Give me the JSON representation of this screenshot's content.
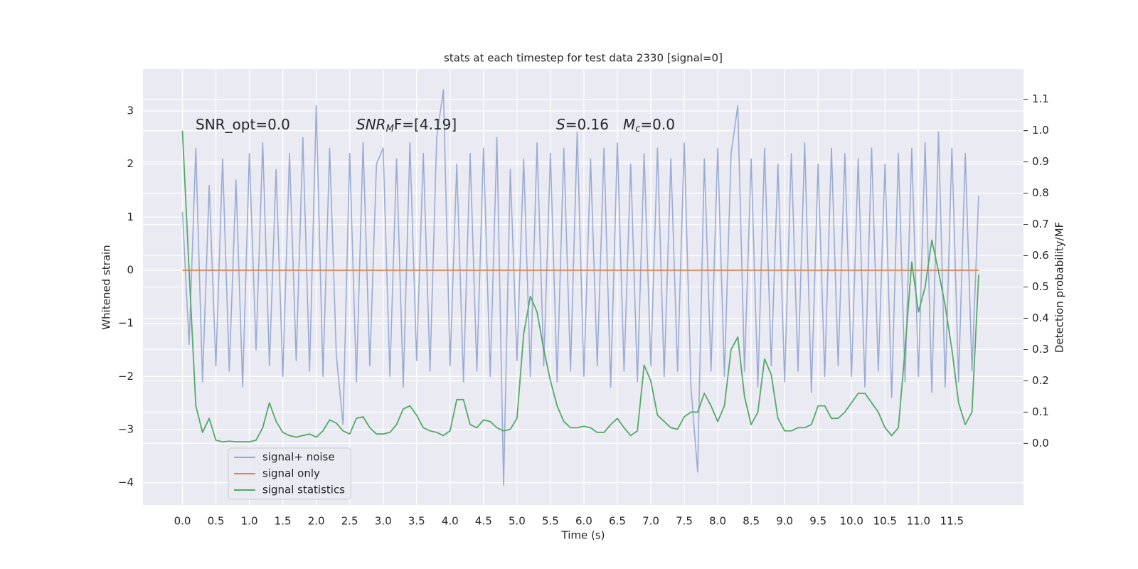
{
  "chart_data": {
    "type": "line",
    "title": "stats at each timestep for test data 2330 [signal=0]",
    "xlabel": "Time (s)",
    "ylabel": "Whitened strain",
    "y2label": "Detection probability/MF",
    "xlim": [
      -0.59,
      12.57
    ],
    "ylim": [
      -4.42,
      3.79
    ],
    "y2lim": [
      -0.197,
      1.197
    ],
    "xticks": [
      {
        "value": 0,
        "label": "0.0"
      },
      0.5,
      {
        "value": 1,
        "label": "1.0"
      },
      1.5,
      {
        "value": 2,
        "label": "2.0"
      },
      2.5,
      {
        "value": 3,
        "label": "3.0"
      },
      3.5,
      {
        "value": 4,
        "label": "4.0"
      },
      4.5,
      {
        "value": 5,
        "label": "5.0"
      },
      5.5,
      {
        "value": 6,
        "label": "6.0"
      },
      6.5,
      {
        "value": 7,
        "label": "7.0"
      },
      7.5,
      {
        "value": 8,
        "label": "8.0"
      },
      8.5,
      {
        "value": 9,
        "label": "9.0"
      },
      9.5,
      {
        "value": 10,
        "label": "10.0"
      },
      10.5,
      {
        "value": 11,
        "label": "11.0"
      },
      11.5
    ],
    "yticks": [
      {
        "value": -4,
        "label": "−4"
      },
      {
        "value": -3,
        "label": "−3"
      },
      {
        "value": -2,
        "label": "−2"
      },
      {
        "value": -1,
        "label": "−1"
      },
      0,
      1,
      2,
      3
    ],
    "y2ticks": [
      {
        "value": 0,
        "label": "0.0"
      },
      0.1,
      0.2,
      0.3,
      0.4,
      0.5,
      0.6,
      0.7,
      0.8,
      0.9,
      {
        "value": 1,
        "label": "1.0"
      },
      1.1
    ],
    "grid": true,
    "legend": "lower left",
    "x": [
      0,
      0.1,
      0.2,
      0.3,
      0.4,
      0.5,
      0.6,
      0.7,
      0.8,
      0.9,
      1,
      1.1,
      1.2,
      1.3,
      1.4,
      1.5,
      1.6,
      1.7,
      1.8,
      1.9,
      2,
      2.1,
      2.2,
      2.3,
      2.4,
      2.5,
      2.6,
      2.7,
      2.8,
      2.9,
      3,
      3.1,
      3.2,
      3.3,
      3.4,
      3.5,
      3.6,
      3.7,
      3.8,
      3.9,
      4,
      4.1,
      4.2,
      4.3,
      4.4,
      4.5,
      4.6,
      4.7,
      4.8,
      4.9,
      5,
      5.1,
      5.2,
      5.3,
      5.4,
      5.5,
      5.6,
      5.7,
      5.8,
      5.9,
      6,
      6.1,
      6.2,
      6.3,
      6.4,
      6.5,
      6.6,
      6.7,
      6.8,
      6.9,
      7,
      7.1,
      7.2,
      7.3,
      7.4,
      7.5,
      7.6,
      7.7,
      7.8,
      7.9,
      8,
      8.1,
      8.2,
      8.3,
      8.4,
      8.5,
      8.6,
      8.7,
      8.8,
      8.9,
      9,
      9.1,
      9.2,
      9.3,
      9.4,
      9.5,
      9.6,
      9.7,
      9.8,
      9.9,
      10,
      10.1,
      10.2,
      10.3,
      10.4,
      10.5,
      10.6,
      10.7,
      10.8,
      10.9,
      11,
      11.1,
      11.2,
      11.3,
      11.4,
      11.5,
      11.6,
      11.7,
      11.8,
      11.9
    ],
    "series": [
      {
        "name": "signal+ noise",
        "color": "#9aabd3",
        "values": [
          1.1,
          -1.4,
          2.3,
          -2.1,
          1.6,
          -1.8,
          2.1,
          -1.9,
          1.7,
          -2.2,
          2.2,
          -1.5,
          2.4,
          -1.8,
          1.9,
          -2.0,
          2.2,
          -1.7,
          2.5,
          -1.9,
          3.1,
          -2.0,
          2.3,
          -1.6,
          -2.9,
          2.2,
          -2.1,
          2.4,
          -1.8,
          2.0,
          2.3,
          -2.0,
          2.1,
          -2.2,
          2.4,
          -1.7,
          2.2,
          -1.9,
          2.5,
          3.4,
          -1.8,
          2.0,
          -2.1,
          2.2,
          -1.9,
          2.3,
          -2.0,
          2.5,
          -4.05,
          1.9,
          -1.7,
          2.1,
          -2.0,
          2.4,
          -1.8,
          2.2,
          -2.1,
          2.3,
          -1.9,
          2.6,
          -2.0,
          2.1,
          -1.8,
          2.3,
          -2.2,
          2.4,
          -1.9,
          2.0,
          -2.1,
          2.2,
          -1.8,
          2.3,
          -2.0,
          2.1,
          -1.9,
          2.4,
          -2.2,
          -3.8,
          2.1,
          -1.9,
          2.3,
          -2.0,
          2.2,
          3.1,
          -1.9,
          2.1,
          -2.2,
          2.3,
          -1.8,
          2.0,
          -2.1,
          2.2,
          -1.9,
          2.4,
          -2.3,
          2.0,
          -2.0,
          2.3,
          -1.8,
          2.2,
          -2.0,
          2.1,
          -2.2,
          2.3,
          -1.9,
          2.0,
          -2.4,
          2.2,
          -2.1,
          2.3,
          -2.0,
          2.4,
          -2.3,
          2.6,
          -2.2,
          2.3,
          -2.1,
          2.2,
          -1.9,
          1.4
        ]
      },
      {
        "name": "signal only",
        "color": "#dd8452",
        "values": [
          0,
          0,
          0,
          0,
          0,
          0,
          0,
          0,
          0,
          0,
          0,
          0,
          0,
          0,
          0,
          0,
          0,
          0,
          0,
          0,
          0,
          0,
          0,
          0,
          0,
          0,
          0,
          0,
          0,
          0,
          0,
          0,
          0,
          0,
          0,
          0,
          0,
          0,
          0,
          0,
          0,
          0,
          0,
          0,
          0,
          0,
          0,
          0,
          0,
          0,
          0,
          0,
          0,
          0,
          0,
          0,
          0,
          0,
          0,
          0,
          0,
          0,
          0,
          0,
          0,
          0,
          0,
          0,
          0,
          0,
          0,
          0,
          0,
          0,
          0,
          0,
          0,
          0,
          0,
          0,
          0,
          0,
          0,
          0,
          0,
          0,
          0,
          0,
          0,
          0,
          0,
          0,
          0,
          0,
          0,
          0,
          0,
          0,
          0,
          0,
          0,
          0,
          0,
          0,
          0,
          0,
          0,
          0,
          0,
          0,
          0,
          0,
          0,
          0,
          0,
          0,
          0,
          0,
          0,
          0
        ]
      },
      {
        "name": "signal statistics",
        "color": "#55a868",
        "axis": "y2",
        "values": [
          1.0,
          0.55,
          0.12,
          0.035,
          0.08,
          0.01,
          0.005,
          0.007,
          0.005,
          0.005,
          0.005,
          0.01,
          0.05,
          0.13,
          0.07,
          0.035,
          0.025,
          0.02,
          0.025,
          0.03,
          0.02,
          0.04,
          0.075,
          0.065,
          0.04,
          0.03,
          0.08,
          0.085,
          0.05,
          0.03,
          0.03,
          0.035,
          0.06,
          0.11,
          0.12,
          0.09,
          0.05,
          0.04,
          0.035,
          0.025,
          0.04,
          0.14,
          0.14,
          0.06,
          0.05,
          0.075,
          0.07,
          0.05,
          0.04,
          0.045,
          0.08,
          0.35,
          0.47,
          0.42,
          0.3,
          0.2,
          0.12,
          0.07,
          0.05,
          0.05,
          0.055,
          0.05,
          0.035,
          0.035,
          0.06,
          0.08,
          0.05,
          0.025,
          0.04,
          0.25,
          0.2,
          0.09,
          0.07,
          0.05,
          0.045,
          0.085,
          0.1,
          0.1,
          0.16,
          0.12,
          0.07,
          0.12,
          0.3,
          0.34,
          0.15,
          0.06,
          0.1,
          0.27,
          0.22,
          0.08,
          0.04,
          0.04,
          0.05,
          0.05,
          0.06,
          0.12,
          0.12,
          0.08,
          0.08,
          0.1,
          0.13,
          0.16,
          0.16,
          0.13,
          0.1,
          0.05,
          0.025,
          0.05,
          0.3,
          0.58,
          0.42,
          0.5,
          0.65,
          0.55,
          0.44,
          0.3,
          0.13,
          0.06,
          0.1,
          0.54
        ]
      }
    ],
    "annotations": [
      [
        {
          "text": "SNR_opt=0.0"
        }
      ],
      [
        {
          "text": "SNR",
          "italic": true
        },
        {
          "text": "M",
          "italic": true,
          "sub": true
        },
        {
          "text": "F=[4.19]"
        }
      ],
      [
        {
          "text": "S",
          "italic": true
        },
        {
          "text": "=0.16"
        }
      ],
      [
        {
          "text": "M",
          "italic": true
        },
        {
          "text": "c",
          "italic": true,
          "sub": true
        },
        {
          "text": "=0.0"
        }
      ]
    ]
  }
}
